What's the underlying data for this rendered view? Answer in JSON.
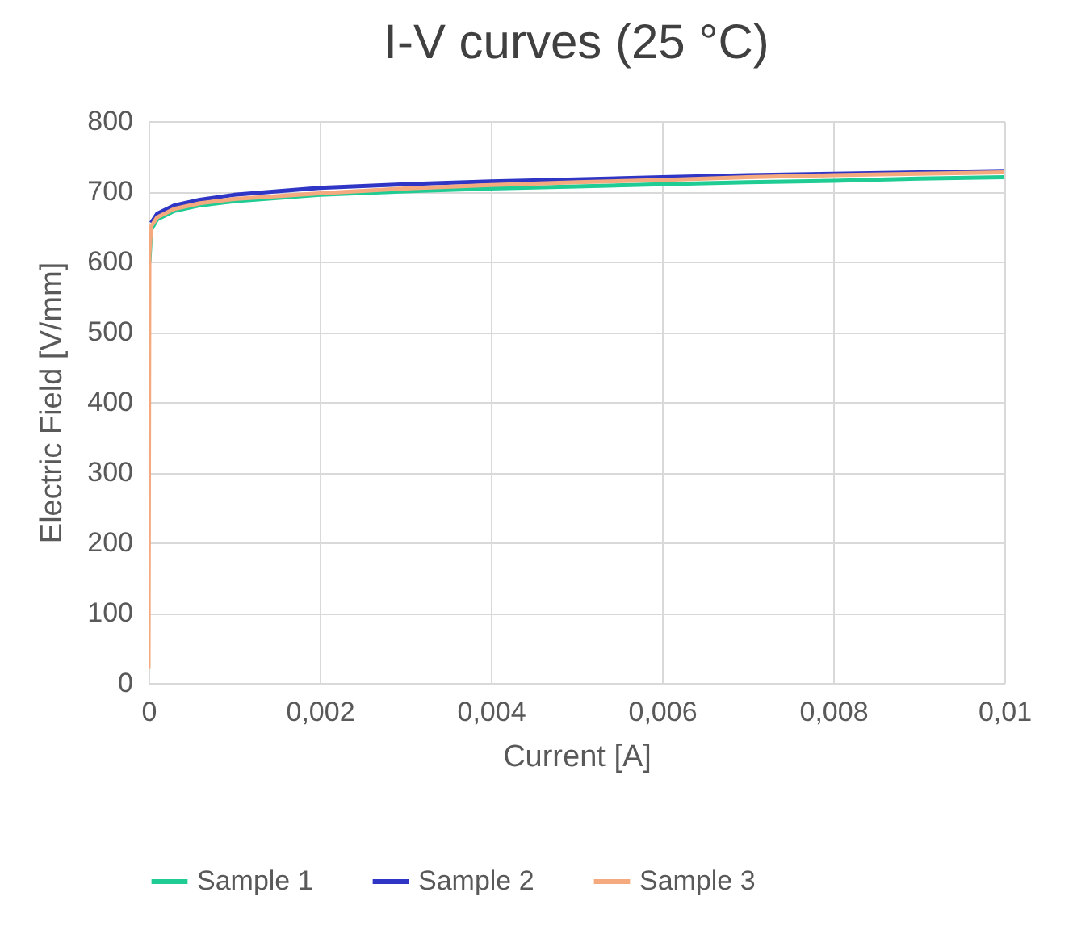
{
  "chart_data": {
    "type": "line",
    "title": "I-V curves (25 °C)",
    "xlabel": "Current [A]",
    "ylabel": "Electric Field [V/mm]",
    "xlim": [
      0,
      0.01
    ],
    "xticks": [
      0,
      {
        "value": 0.002,
        "label": "0,002"
      },
      {
        "value": 0.004,
        "label": "0,004"
      },
      {
        "value": 0.006,
        "label": "0,006"
      },
      {
        "value": 0.008,
        "label": "0,008"
      },
      {
        "value": 0.01,
        "label": "0,01"
      }
    ],
    "ylim": [
      0,
      800
    ],
    "yticks": [
      0,
      100,
      200,
      300,
      400,
      500,
      600,
      700,
      800
    ],
    "grid": true,
    "legend": "bottom",
    "marker": "none",
    "line_style": "solid",
    "series": [
      {
        "name": "Sample 1",
        "color": "#1fcc94",
        "x": [
          1e-05,
          3e-05,
          0.0001,
          0.0003,
          0.0006,
          0.001,
          0.002,
          0.003,
          0.004,
          0.005,
          0.006,
          0.007,
          0.008,
          0.009,
          0.01
        ],
        "values": [
          600,
          645,
          660,
          672,
          680,
          686,
          695,
          700,
          704,
          707,
          710,
          713,
          715,
          718,
          720
        ]
      },
      {
        "name": "Sample 2",
        "color": "#2f35c4",
        "x": [
          3e-05,
          0.0001,
          0.0003,
          0.0006,
          0.001,
          0.002,
          0.003,
          0.004,
          0.005,
          0.006,
          0.007,
          0.008,
          0.009,
          0.01
        ],
        "values": [
          655,
          668,
          680,
          688,
          695,
          705,
          710,
          714,
          717,
          720,
          723,
          725,
          727,
          729
        ]
      },
      {
        "name": "Sample 3",
        "color": "#f4a97f",
        "x": [
          0,
          1e-05,
          3e-05,
          0.0001,
          0.0003,
          0.0006,
          0.001,
          0.002,
          0.003,
          0.004,
          0.005,
          0.006,
          0.007,
          0.008,
          0.009,
          0.01
        ],
        "values": [
          20,
          610,
          650,
          663,
          675,
          683,
          689,
          697,
          704,
          709,
          713,
          716,
          720,
          723,
          725,
          727
        ]
      }
    ]
  }
}
